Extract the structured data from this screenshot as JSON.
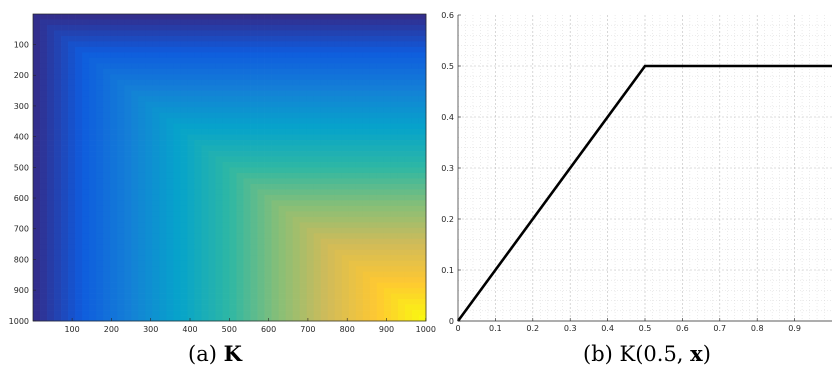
{
  "chart_data": [
    {
      "type": "heatmap",
      "caption_prefix": "(a)",
      "caption_symbol": "K",
      "x_ticks": [
        100,
        200,
        300,
        400,
        500,
        600,
        700,
        800,
        900,
        1000
      ],
      "y_ticks": [
        100,
        200,
        300,
        400,
        500,
        600,
        700,
        800,
        900,
        1000
      ],
      "xlim": [
        1,
        1000
      ],
      "ylim": [
        1,
        1000
      ],
      "y_direction": "top-down",
      "values_function": "min(x, y) over indices 1..1000",
      "value_range": [
        0,
        1
      ],
      "colormap": "parula",
      "colormap_stops": [
        "#352a87",
        "#0f5cdd",
        "#1481d6",
        "#06a4ca",
        "#2eb7a4",
        "#87bf77",
        "#d1bb59",
        "#fec832",
        "#f9fb0e"
      ],
      "grid": false
    },
    {
      "type": "line",
      "caption_prefix": "(b)",
      "caption_formula_pre": "K(0.5, ",
      "caption_formula_bold": "x",
      "caption_formula_post": ")",
      "x": [
        0,
        0.5,
        1.0
      ],
      "series": [
        {
          "values": [
            0,
            0.5,
            0.5
          ],
          "color": "#000000"
        }
      ],
      "xlim": [
        0,
        1
      ],
      "ylim": [
        0,
        0.6
      ],
      "x_ticks": [
        "0",
        "0.1",
        "0.2",
        "0.3",
        "0.4",
        "0.5",
        "0.6",
        "0.7",
        "0.8",
        "0.9"
      ],
      "y_ticks": [
        "0",
        "0.1",
        "0.2",
        "0.3",
        "0.4",
        "0.5",
        "0.6"
      ],
      "grid": true,
      "minor_grid": true
    }
  ]
}
